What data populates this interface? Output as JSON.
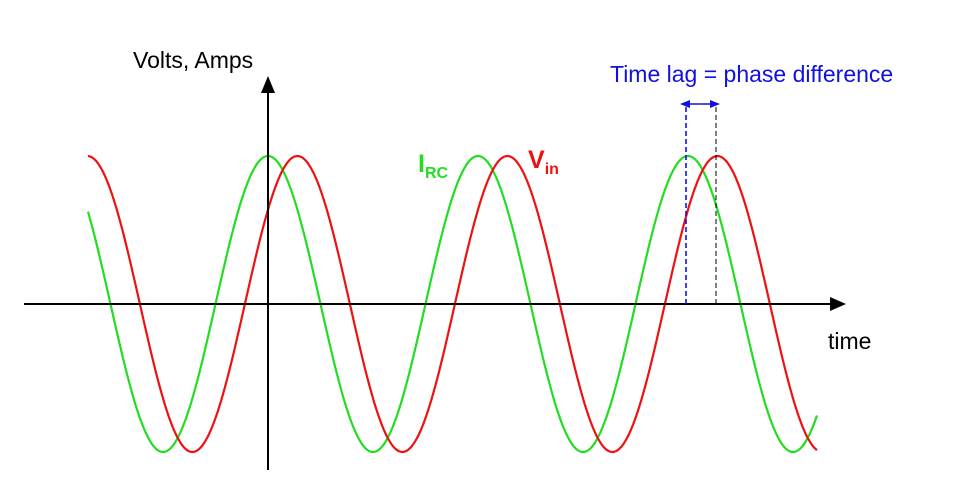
{
  "diagram": {
    "y_axis_label": "Volts, Amps",
    "x_axis_label": "time",
    "annotation": "Time lag = phase difference",
    "current_label": {
      "main": "I",
      "sub": "RC"
    },
    "voltage_label": {
      "main": "V",
      "sub": "in"
    }
  },
  "colors": {
    "axis": "#000000",
    "current": "#22dd22",
    "voltage": "#ee1111",
    "annotation": "#1010e0",
    "background": "#ffffff"
  },
  "waves": {
    "cycles_per_unit_note": "",
    "amplitude": 1,
    "current_lead_fraction_of_period": 0.07
  }
}
